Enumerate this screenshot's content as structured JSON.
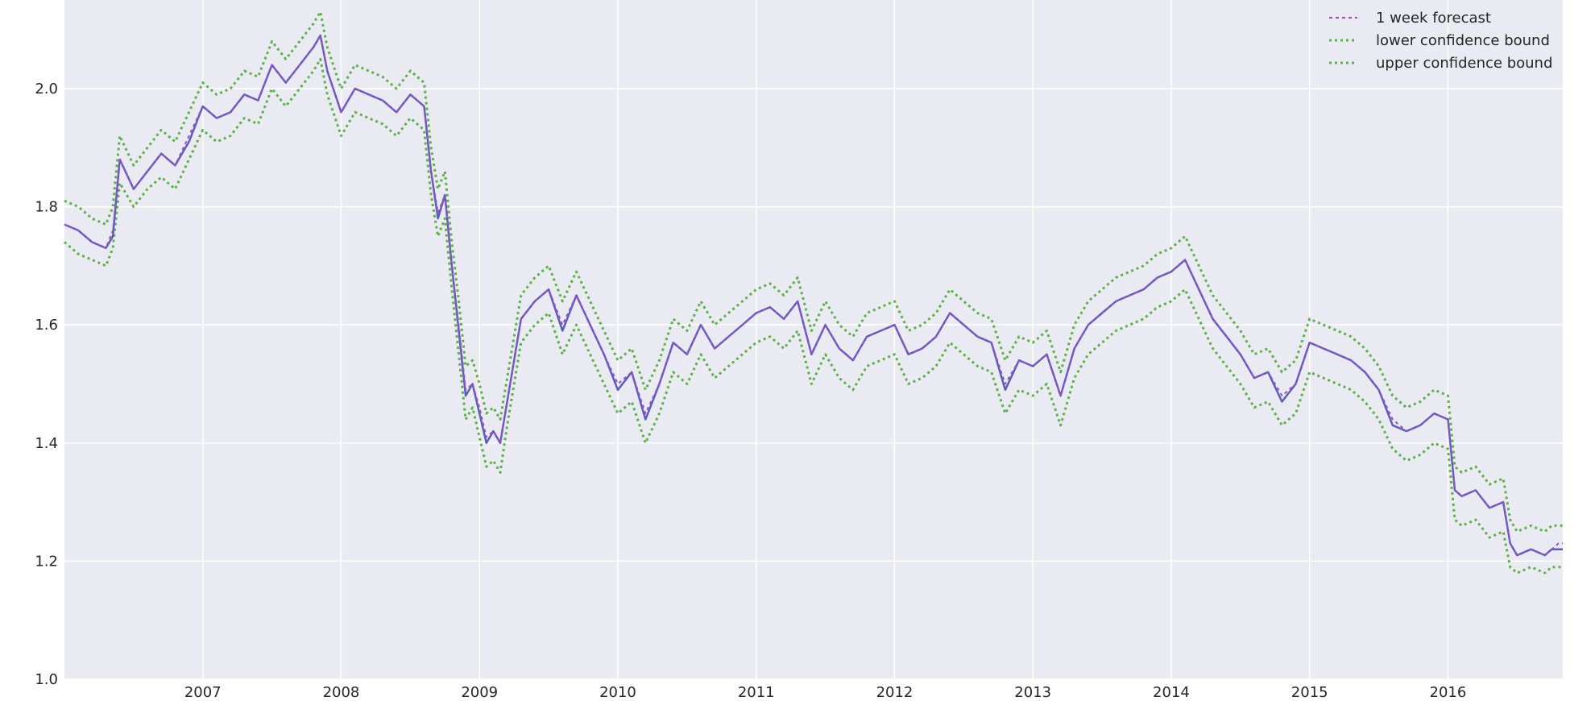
{
  "chart_data": {
    "type": "line",
    "title": "",
    "xlabel": "",
    "ylabel": "",
    "xlim": [
      2006.0,
      2016.83
    ],
    "ylim": [
      1.0,
      2.15
    ],
    "x_ticks": [
      2007,
      2008,
      2009,
      2010,
      2011,
      2012,
      2013,
      2014,
      2015,
      2016
    ],
    "x_tick_labels": [
      "2007",
      "2008",
      "2009",
      "2010",
      "2011",
      "2012",
      "2013",
      "2014",
      "2015",
      "2016"
    ],
    "y_ticks": [
      1.0,
      1.2,
      1.4,
      1.6,
      1.8,
      2.0
    ],
    "y_tick_labels": [
      "1.0",
      "1.2",
      "1.4",
      "1.6",
      "1.8",
      "2.0"
    ],
    "grid": true,
    "legend_position": "top-right",
    "colors": {
      "background": "#eaeaf2",
      "grid": "#ffffff",
      "actual": "#5a5fb8",
      "forecast": "#9b4fd0",
      "bounds": "#5cb147"
    },
    "x": [
      2006.0,
      2006.1,
      2006.2,
      2006.3,
      2006.35,
      2006.4,
      2006.5,
      2006.6,
      2006.7,
      2006.8,
      2006.9,
      2007.0,
      2007.1,
      2007.2,
      2007.3,
      2007.4,
      2007.5,
      2007.6,
      2007.7,
      2007.8,
      2007.85,
      2007.9,
      2008.0,
      2008.1,
      2008.2,
      2008.3,
      2008.4,
      2008.5,
      2008.6,
      2008.65,
      2008.7,
      2008.75,
      2008.8,
      2008.85,
      2008.9,
      2008.95,
      2009.0,
      2009.05,
      2009.1,
      2009.15,
      2009.2,
      2009.3,
      2009.4,
      2009.5,
      2009.6,
      2009.7,
      2009.8,
      2009.9,
      2010.0,
      2010.1,
      2010.2,
      2010.3,
      2010.4,
      2010.5,
      2010.6,
      2010.7,
      2010.8,
      2010.9,
      2011.0,
      2011.1,
      2011.2,
      2011.3,
      2011.4,
      2011.5,
      2011.6,
      2011.7,
      2011.8,
      2011.9,
      2012.0,
      2012.1,
      2012.2,
      2012.3,
      2012.4,
      2012.5,
      2012.6,
      2012.7,
      2012.8,
      2012.9,
      2013.0,
      2013.1,
      2013.2,
      2013.3,
      2013.4,
      2013.5,
      2013.6,
      2013.7,
      2013.8,
      2013.9,
      2014.0,
      2014.1,
      2014.2,
      2014.3,
      2014.4,
      2014.5,
      2014.6,
      2014.7,
      2014.8,
      2014.9,
      2015.0,
      2015.1,
      2015.2,
      2015.3,
      2015.4,
      2015.5,
      2015.6,
      2015.7,
      2015.8,
      2015.9,
      2016.0,
      2016.05,
      2016.1,
      2016.2,
      2016.3,
      2016.4,
      2016.45,
      2016.5,
      2016.6,
      2016.7,
      2016.75,
      2016.8,
      2016.83
    ],
    "series": [
      {
        "name": "1 week forecast",
        "values": [
          1.77,
          1.76,
          1.74,
          1.73,
          1.76,
          1.88,
          1.83,
          1.86,
          1.89,
          1.87,
          1.92,
          1.97,
          1.95,
          1.96,
          1.99,
          1.98,
          2.04,
          2.01,
          2.04,
          2.07,
          2.09,
          2.03,
          1.96,
          2.0,
          1.99,
          1.98,
          1.96,
          1.99,
          1.97,
          1.86,
          1.79,
          1.82,
          1.7,
          1.6,
          1.49,
          1.5,
          1.46,
          1.41,
          1.42,
          1.4,
          1.47,
          1.61,
          1.64,
          1.66,
          1.6,
          1.65,
          1.6,
          1.55,
          1.5,
          1.52,
          1.45,
          1.5,
          1.57,
          1.55,
          1.6,
          1.56,
          1.58,
          1.6,
          1.62,
          1.63,
          1.61,
          1.64,
          1.55,
          1.6,
          1.56,
          1.54,
          1.58,
          1.59,
          1.6,
          1.55,
          1.56,
          1.58,
          1.62,
          1.6,
          1.58,
          1.57,
          1.5,
          1.54,
          1.53,
          1.55,
          1.48,
          1.56,
          1.6,
          1.62,
          1.64,
          1.65,
          1.66,
          1.68,
          1.69,
          1.71,
          1.66,
          1.61,
          1.58,
          1.55,
          1.51,
          1.52,
          1.48,
          1.5,
          1.57,
          1.56,
          1.55,
          1.54,
          1.52,
          1.49,
          1.44,
          1.42,
          1.43,
          1.45,
          1.44,
          1.32,
          1.31,
          1.32,
          1.29,
          1.3,
          1.23,
          1.21,
          1.22,
          1.21,
          1.22,
          1.23,
          1.23
        ]
      },
      {
        "name": "lower confidence bound",
        "values": [
          1.74,
          1.72,
          1.71,
          1.7,
          1.73,
          1.84,
          1.8,
          1.83,
          1.85,
          1.83,
          1.88,
          1.93,
          1.91,
          1.92,
          1.95,
          1.94,
          2.0,
          1.97,
          2.0,
          2.03,
          2.05,
          1.99,
          1.92,
          1.96,
          1.95,
          1.94,
          1.92,
          1.95,
          1.93,
          1.82,
          1.75,
          1.78,
          1.66,
          1.55,
          1.44,
          1.46,
          1.41,
          1.36,
          1.37,
          1.35,
          1.43,
          1.57,
          1.6,
          1.62,
          1.55,
          1.6,
          1.55,
          1.5,
          1.45,
          1.47,
          1.4,
          1.45,
          1.52,
          1.5,
          1.55,
          1.51,
          1.53,
          1.55,
          1.57,
          1.58,
          1.56,
          1.59,
          1.5,
          1.55,
          1.51,
          1.49,
          1.53,
          1.54,
          1.55,
          1.5,
          1.51,
          1.53,
          1.57,
          1.55,
          1.53,
          1.52,
          1.45,
          1.49,
          1.48,
          1.5,
          1.43,
          1.51,
          1.55,
          1.57,
          1.59,
          1.6,
          1.61,
          1.63,
          1.64,
          1.66,
          1.61,
          1.56,
          1.53,
          1.5,
          1.46,
          1.47,
          1.43,
          1.45,
          1.52,
          1.51,
          1.5,
          1.49,
          1.47,
          1.44,
          1.39,
          1.37,
          1.38,
          1.4,
          1.39,
          1.27,
          1.26,
          1.27,
          1.24,
          1.25,
          1.19,
          1.18,
          1.19,
          1.18,
          1.19,
          1.19,
          1.19
        ]
      },
      {
        "name": "upper confidence bound",
        "values": [
          1.81,
          1.8,
          1.78,
          1.77,
          1.8,
          1.92,
          1.87,
          1.9,
          1.93,
          1.91,
          1.96,
          2.01,
          1.99,
          2.0,
          2.03,
          2.02,
          2.08,
          2.05,
          2.08,
          2.11,
          2.13,
          2.07,
          2.0,
          2.04,
          2.03,
          2.02,
          2.0,
          2.03,
          2.01,
          1.9,
          1.83,
          1.86,
          1.74,
          1.64,
          1.53,
          1.54,
          1.5,
          1.45,
          1.46,
          1.44,
          1.51,
          1.65,
          1.68,
          1.7,
          1.64,
          1.69,
          1.64,
          1.59,
          1.54,
          1.56,
          1.49,
          1.54,
          1.61,
          1.59,
          1.64,
          1.6,
          1.62,
          1.64,
          1.66,
          1.67,
          1.65,
          1.68,
          1.59,
          1.64,
          1.6,
          1.58,
          1.62,
          1.63,
          1.64,
          1.59,
          1.6,
          1.62,
          1.66,
          1.64,
          1.62,
          1.61,
          1.54,
          1.58,
          1.57,
          1.59,
          1.52,
          1.6,
          1.64,
          1.66,
          1.68,
          1.69,
          1.7,
          1.72,
          1.73,
          1.75,
          1.7,
          1.65,
          1.62,
          1.59,
          1.55,
          1.56,
          1.52,
          1.54,
          1.61,
          1.6,
          1.59,
          1.58,
          1.56,
          1.53,
          1.48,
          1.46,
          1.47,
          1.49,
          1.48,
          1.36,
          1.35,
          1.36,
          1.33,
          1.34,
          1.27,
          1.25,
          1.26,
          1.25,
          1.26,
          1.26,
          1.26
        ]
      }
    ],
    "actual": {
      "values": [
        1.77,
        1.76,
        1.74,
        1.73,
        1.75,
        1.88,
        1.83,
        1.86,
        1.89,
        1.87,
        1.91,
        1.97,
        1.95,
        1.96,
        1.99,
        1.98,
        2.04,
        2.01,
        2.04,
        2.07,
        2.09,
        2.03,
        1.96,
        2.0,
        1.99,
        1.98,
        1.96,
        1.99,
        1.97,
        1.86,
        1.78,
        1.82,
        1.7,
        1.59,
        1.48,
        1.5,
        1.45,
        1.4,
        1.42,
        1.4,
        1.47,
        1.61,
        1.64,
        1.66,
        1.59,
        1.65,
        1.6,
        1.55,
        1.49,
        1.52,
        1.44,
        1.5,
        1.57,
        1.55,
        1.6,
        1.56,
        1.58,
        1.6,
        1.62,
        1.63,
        1.61,
        1.64,
        1.55,
        1.6,
        1.56,
        1.54,
        1.58,
        1.59,
        1.6,
        1.55,
        1.56,
        1.58,
        1.62,
        1.6,
        1.58,
        1.57,
        1.49,
        1.54,
        1.53,
        1.55,
        1.48,
        1.56,
        1.6,
        1.62,
        1.64,
        1.65,
        1.66,
        1.68,
        1.69,
        1.71,
        1.66,
        1.61,
        1.58,
        1.55,
        1.51,
        1.52,
        1.47,
        1.5,
        1.57,
        1.56,
        1.55,
        1.54,
        1.52,
        1.49,
        1.43,
        1.42,
        1.43,
        1.45,
        1.44,
        1.32,
        1.31,
        1.32,
        1.29,
        1.3,
        1.23,
        1.21,
        1.22,
        1.21,
        1.22,
        1.22,
        1.22
      ]
    },
    "legend": [
      "1 week forecast",
      "lower confidence bound",
      "upper confidence bound"
    ]
  }
}
